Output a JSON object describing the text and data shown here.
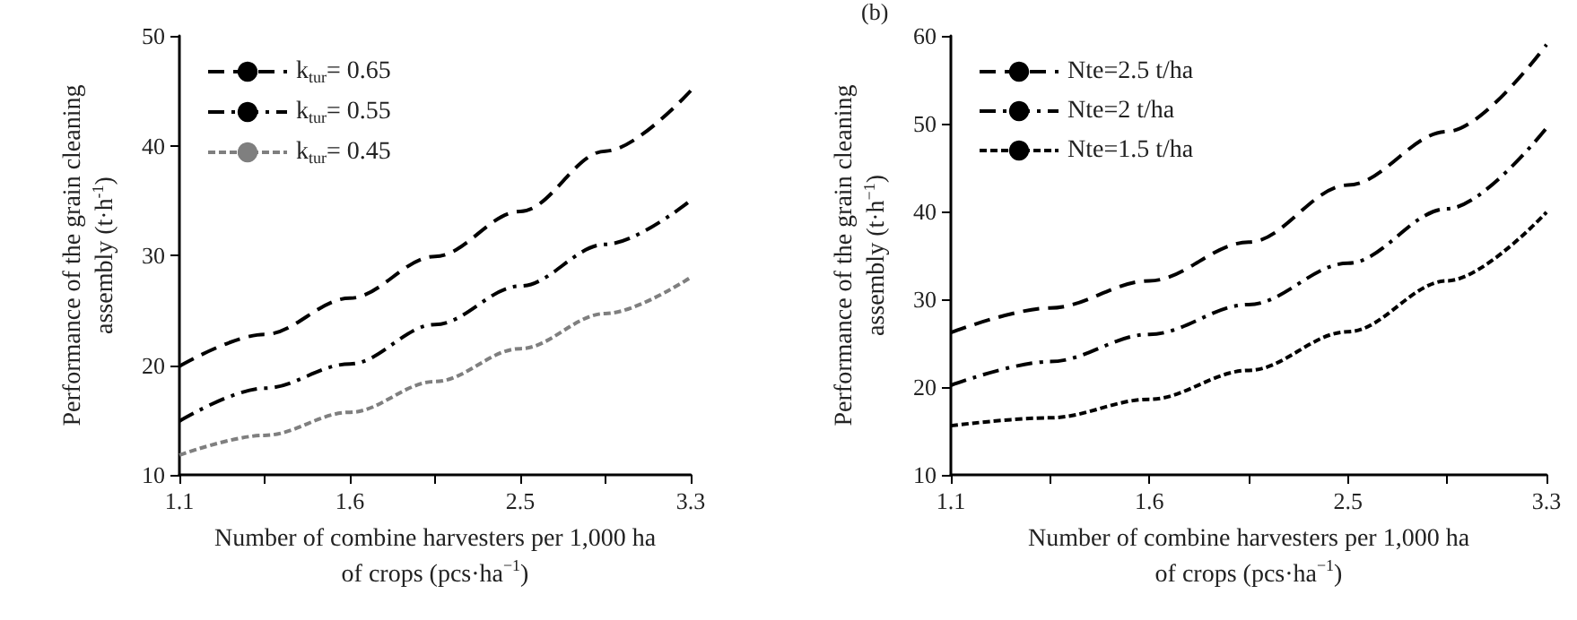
{
  "chart_data": [
    {
      "type": "line",
      "xlabel": "Number of combine harvesters per 1,000 ha\nof crops (pcs·ha$^{−1}$)",
      "ylabel": "Performance of the grain cleaning\nassembly (t·h$^{-1}$)",
      "categories": [
        "1.1",
        null,
        "1.6",
        null,
        "2.5",
        null,
        "3.3"
      ],
      "series": [
        {
          "name": "k$_{tur}$= 0.65",
          "color": "#000000",
          "line_style": "dashed",
          "values": [
            19.9,
            22.8,
            26.1,
            29.9,
            34,
            39.5,
            45
          ]
        },
        {
          "name": "k$_{tur}$= 0.55",
          "color": "#000000",
          "line_style": "dashdot",
          "values": [
            14.9,
            17.9,
            20.1,
            23.7,
            27.2,
            31,
            35
          ]
        },
        {
          "name": "k$_{tur}$= 0.45",
          "color": "#7f7f7f",
          "line_style": "dotted",
          "values": [
            11.8,
            13.6,
            15.7,
            18.5,
            21.5,
            24.7,
            28
          ]
        }
      ],
      "ylim": [
        10,
        50
      ],
      "yticks": [
        10,
        20,
        30,
        40,
        50
      ],
      "grid": false,
      "legend": "top left",
      "marker": "none"
    },
    {
      "type": "line",
      "xlabel": "Number of combine harvesters per 1,000 ha\nof crops (pcs·ha$^{−1}$)",
      "ylabel": "Performance of the grain cleaning\nassembly (t·h$^{−1}$)",
      "annotations": [
        "(b)"
      ],
      "categories": [
        "1.1",
        null,
        "1.6",
        null,
        "2.5",
        null,
        "3.3"
      ],
      "series": [
        {
          "name": "Nte=2.5 t/ha",
          "color": "#000000",
          "line_style": "dashed",
          "values": [
            26.2,
            29,
            32.1,
            36.5,
            43,
            49.1,
            59
          ]
        },
        {
          "name": "Nte=2 t/ha",
          "color": "#000000",
          "line_style": "dashdot",
          "values": [
            20.2,
            22.9,
            26,
            29.4,
            34.1,
            40.3,
            49.5
          ]
        },
        {
          "name": "Nte=1.5 t/ha",
          "color": "#000000",
          "line_style": "dotted",
          "values": [
            15.6,
            16.5,
            18.6,
            21.9,
            26.3,
            32.1,
            39.9
          ]
        }
      ],
      "ylim": [
        10,
        60
      ],
      "yticks": [
        10,
        20,
        30,
        40,
        50,
        60
      ],
      "grid": false,
      "legend": "top left",
      "marker": "none"
    }
  ]
}
